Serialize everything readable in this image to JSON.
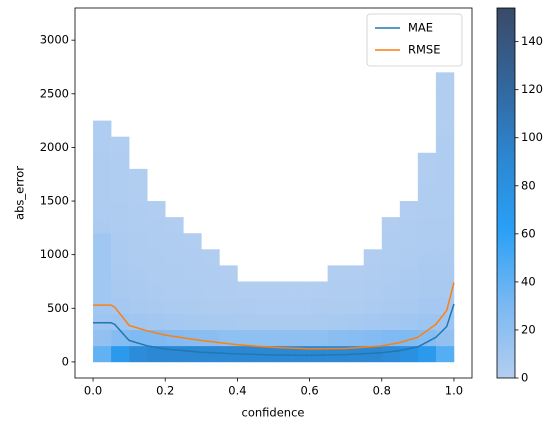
{
  "chart_data": {
    "type": "hist2d_lines",
    "x_label": "confidence",
    "y_label": "abs_error",
    "xlim": [
      -0.05,
      1.05
    ],
    "ylim": [
      -150,
      3300
    ],
    "xticks": [
      {
        "value": 0,
        "label": "0.0"
      },
      {
        "value": 0.2,
        "label": "0.2"
      },
      {
        "value": 0.4,
        "label": "0.4"
      },
      {
        "value": 0.6,
        "label": "0.6"
      },
      {
        "value": 0.8,
        "label": "0.8"
      },
      {
        "value": 1,
        "label": "1.0"
      }
    ],
    "yticks": [
      0,
      500,
      1000,
      1500,
      2000,
      2500,
      3000
    ],
    "xbins": [
      0,
      0.05,
      0.1,
      0.15,
      0.2,
      0.25,
      0.3,
      0.35,
      0.4,
      0.45,
      0.5,
      0.55,
      0.6,
      0.65,
      0.7,
      0.75,
      0.8,
      0.85,
      0.9,
      0.95,
      1.0
    ],
    "ybins": [
      0,
      150,
      300,
      450,
      600,
      750,
      900,
      1050,
      1200,
      1350,
      1500,
      1650,
      1800,
      1950,
      2100,
      2250,
      2400,
      2550,
      2700
    ],
    "counts": [
      [
        40,
        70,
        85,
        90,
        90,
        90,
        90,
        90,
        90,
        90,
        90,
        90,
        90,
        90,
        90,
        90,
        85,
        80,
        70,
        45
      ],
      [
        18,
        25,
        28,
        28,
        26,
        24,
        22,
        20,
        20,
        20,
        20,
        20,
        20,
        22,
        24,
        26,
        28,
        28,
        25,
        18
      ],
      [
        12,
        12,
        10,
        9,
        8,
        7,
        6,
        6,
        5,
        5,
        5,
        5,
        5,
        6,
        7,
        8,
        9,
        10,
        12,
        12
      ],
      [
        10,
        8,
        6,
        5,
        4,
        4,
        3,
        3,
        3,
        2,
        2,
        2,
        3,
        3,
        3,
        4,
        5,
        6,
        8,
        8
      ],
      [
        10,
        6,
        5,
        4,
        3,
        3,
        2,
        2,
        1,
        1,
        1,
        1,
        1,
        2,
        2,
        3,
        4,
        5,
        6,
        6
      ],
      [
        10,
        5,
        4,
        3,
        3,
        2,
        2,
        1,
        0,
        0,
        0,
        0,
        0,
        1,
        1,
        2,
        3,
        4,
        5,
        5
      ],
      [
        10,
        4,
        3,
        3,
        2,
        2,
        1,
        0,
        0,
        0,
        0,
        0,
        0,
        0,
        0,
        1,
        2,
        3,
        4,
        4
      ],
      [
        10,
        4,
        3,
        2,
        2,
        1,
        0,
        0,
        0,
        0,
        0,
        0,
        0,
        0,
        0,
        0,
        2,
        2,
        3,
        3
      ],
      [
        4,
        3,
        2,
        2,
        1,
        0,
        0,
        0,
        0,
        0,
        0,
        0,
        0,
        0,
        0,
        0,
        1,
        2,
        3,
        3
      ],
      [
        3,
        3,
        2,
        1,
        0,
        0,
        0,
        0,
        0,
        0,
        0,
        0,
        0,
        0,
        0,
        0,
        0,
        1,
        2,
        2
      ],
      [
        3,
        2,
        1,
        0,
        0,
        0,
        0,
        0,
        0,
        0,
        0,
        0,
        0,
        0,
        0,
        0,
        0,
        0,
        2,
        2
      ],
      [
        3,
        2,
        1,
        0,
        0,
        0,
        0,
        0,
        0,
        0,
        0,
        0,
        0,
        0,
        0,
        0,
        0,
        0,
        1,
        2
      ],
      [
        3,
        2,
        0,
        0,
        0,
        0,
        0,
        0,
        0,
        0,
        0,
        0,
        0,
        0,
        0,
        0,
        0,
        0,
        1,
        2
      ],
      [
        2,
        1,
        0,
        0,
        0,
        0,
        0,
        0,
        0,
        0,
        0,
        0,
        0,
        0,
        0,
        0,
        0,
        0,
        0,
        2
      ],
      [
        2,
        0,
        0,
        0,
        0,
        0,
        0,
        0,
        0,
        0,
        0,
        0,
        0,
        0,
        0,
        0,
        0,
        0,
        0,
        1
      ],
      [
        0,
        0,
        0,
        0,
        0,
        0,
        0,
        0,
        0,
        0,
        0,
        0,
        0,
        0,
        0,
        0,
        0,
        0,
        0,
        1
      ],
      [
        0,
        0,
        0,
        0,
        0,
        0,
        0,
        0,
        0,
        0,
        0,
        0,
        0,
        0,
        0,
        0,
        0,
        0,
        0,
        1
      ],
      [
        0,
        0,
        0,
        0,
        0,
        0,
        0,
        0,
        0,
        0,
        0,
        0,
        0,
        0,
        0,
        0,
        0,
        0,
        0,
        1
      ]
    ],
    "colormap": [
      "#b3cef0",
      "#7ab8f2",
      "#2aa0f6",
      "#2c86d0",
      "#33659a",
      "#3a4a68"
    ],
    "clim": [
      0,
      154
    ],
    "cticks": [
      0,
      20,
      40,
      60,
      80,
      100,
      120,
      140
    ],
    "x": [
      0,
      0.05,
      0.06,
      0.1,
      0.15,
      0.2,
      0.3,
      0.4,
      0.5,
      0.6,
      0.7,
      0.8,
      0.85,
      0.9,
      0.95,
      0.98,
      1.0
    ],
    "series": [
      {
        "name": "MAE",
        "color": "#1f77b4",
        "values": [
          365,
          365,
          350,
          200,
          150,
          120,
          90,
          75,
          65,
          62,
          68,
          85,
          105,
          140,
          230,
          330,
          540
        ]
      },
      {
        "name": "RMSE",
        "color": "#ff7f0e",
        "values": [
          530,
          530,
          510,
          340,
          290,
          250,
          200,
          160,
          135,
          122,
          125,
          150,
          180,
          230,
          350,
          480,
          740
        ]
      }
    ],
    "legend": "upper right"
  }
}
